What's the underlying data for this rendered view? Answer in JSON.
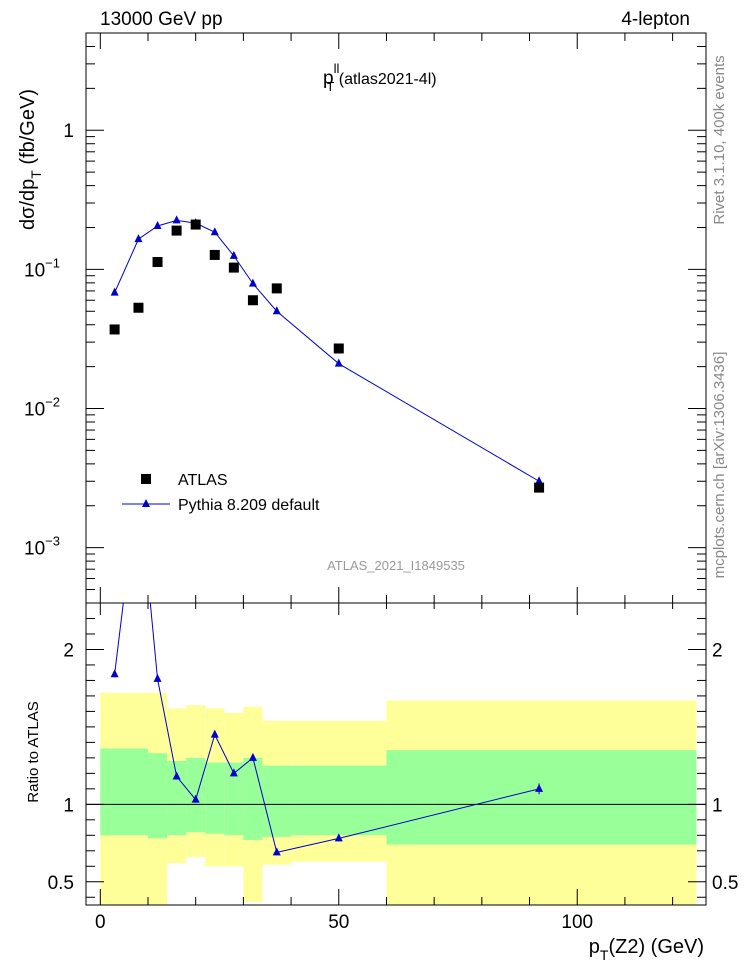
{
  "header": {
    "left": "13000 GeV pp",
    "right": "4-lepton"
  },
  "side_labels": {
    "rivet": "Rivet 3.1.10,  400k events",
    "source": "mcplots.cern.ch [arXiv:1306.3436]"
  },
  "colors": {
    "atlas": "#000000",
    "pythia": "#0000cc",
    "band_inner": "#99ff99",
    "band_outer": "#ffff99"
  },
  "chart_data": [
    {
      "type": "scatter",
      "panel": "main",
      "title_main": "p",
      "title_sup": "ll",
      "title_sub": "T",
      "title_rest": " (atlas2021-4l)",
      "ylabel": "dσ/dp",
      "ylabel_sub": "T",
      "ylabel_rest": " (fb/GeV)",
      "analysis_label": "ATLAS_2021_I1849535",
      "yscale": "log",
      "ylim": [
        0.0004,
        5
      ],
      "xlim": [
        -3,
        127
      ],
      "y_ticks": [
        {
          "value": 1,
          "label": "1"
        },
        {
          "value": 0.1,
          "label": "10",
          "exp": "−1"
        },
        {
          "value": 0.01,
          "label": "10",
          "exp": "−2"
        },
        {
          "value": 0.001,
          "label": "10",
          "exp": "−3"
        }
      ],
      "legend_position": "bottom-left",
      "series": [
        {
          "name": "ATLAS",
          "marker": "square",
          "x": [
            3,
            8,
            12,
            16,
            20,
            24,
            28,
            32,
            37,
            50,
            92
          ],
          "y": [
            0.037,
            0.053,
            0.113,
            0.19,
            0.21,
            0.127,
            0.103,
            0.06,
            0.073,
            0.027,
            0.0027
          ]
        },
        {
          "name": "Pythia 8.209 default",
          "marker": "triangle",
          "x": [
            3,
            8,
            12,
            16,
            20,
            24,
            28,
            32,
            37,
            50,
            92
          ],
          "y": [
            0.068,
            0.165,
            0.205,
            0.225,
            0.215,
            0.185,
            0.125,
            0.079,
            0.05,
            0.021,
            0.003
          ]
        }
      ]
    },
    {
      "type": "line",
      "panel": "ratio",
      "ylabel": "Ratio to ATLAS",
      "xlabel": "p",
      "xlabel_sub": "T",
      "xlabel_rest": "(Z2) (GeV)",
      "ylim": [
        0.35,
        2.3
      ],
      "xlim": [
        -3,
        127
      ],
      "x_ticks": [
        0,
        50,
        100
      ],
      "y_ticks": [
        0.5,
        1,
        2
      ],
      "y_tick_labels": [
        "0.5",
        "1",
        "2"
      ],
      "reference_line": 1,
      "bands": [
        {
          "x0": 0,
          "x1": 10,
          "inner": [
            0.8,
            1.36
          ],
          "outer": [
            0.35,
            1.72
          ]
        },
        {
          "x0": 10,
          "x1": 14,
          "inner": [
            0.78,
            1.33
          ],
          "outer": [
            0.35,
            1.72
          ]
        },
        {
          "x0": 14,
          "x1": 18,
          "inner": [
            0.8,
            1.28
          ],
          "outer": [
            0.62,
            1.62
          ]
        },
        {
          "x0": 18,
          "x1": 22,
          "inner": [
            0.82,
            1.3
          ],
          "outer": [
            0.66,
            1.64
          ]
        },
        {
          "x0": 22,
          "x1": 26,
          "inner": [
            0.81,
            1.27
          ],
          "outer": [
            0.6,
            1.62
          ]
        },
        {
          "x0": 26,
          "x1": 30,
          "inner": [
            0.8,
            1.27
          ],
          "outer": [
            0.6,
            1.59
          ]
        },
        {
          "x0": 30,
          "x1": 34,
          "inner": [
            0.77,
            1.3
          ],
          "outer": [
            0.37,
            1.63
          ]
        },
        {
          "x0": 34,
          "x1": 40,
          "inner": [
            0.79,
            1.25
          ],
          "outer": [
            0.61,
            1.54
          ]
        },
        {
          "x0": 40,
          "x1": 60,
          "inner": [
            0.8,
            1.25
          ],
          "outer": [
            0.63,
            1.54
          ]
        },
        {
          "x0": 60,
          "x1": 125,
          "inner": [
            0.74,
            1.35
          ],
          "outer": [
            0.35,
            1.67
          ]
        }
      ],
      "series": [
        {
          "name": "Pythia 8.209 default",
          "x": [
            3,
            8,
            12,
            16,
            20,
            24,
            28,
            32,
            37,
            50,
            92
          ],
          "y": [
            1.84,
            3.1,
            1.81,
            1.18,
            1.03,
            1.45,
            1.2,
            1.3,
            0.69,
            0.78,
            1.1
          ],
          "yerr": [
            0.02,
            0.02,
            0.02,
            0.02,
            0.02,
            0.02,
            0.02,
            0.02,
            0.02,
            0.02,
            0.035
          ]
        }
      ]
    }
  ]
}
